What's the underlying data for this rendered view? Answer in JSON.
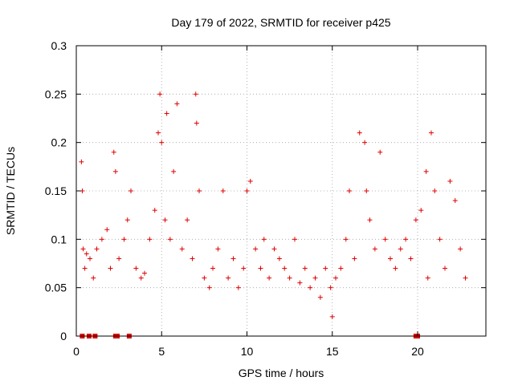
{
  "chart_data": {
    "type": "scatter",
    "title": "Day 179 of 2022, SRMTID for receiver p425",
    "xlabel": "GPS time / hours",
    "ylabel": "SRMTID / TECUs",
    "xlim": [
      0,
      24
    ],
    "ylim": [
      0,
      0.3
    ],
    "xticks": [
      0,
      5,
      10,
      15,
      20
    ],
    "xtick_labels": [
      "0",
      "5",
      "10",
      "15",
      "20"
    ],
    "yticks": [
      0,
      0.05,
      0.1,
      0.15,
      0.2,
      0.25,
      0.3
    ],
    "ytick_labels": [
      "0",
      "0.05",
      "0.1",
      "0.15",
      "0.2",
      "0.25",
      "0.3"
    ],
    "grid": true,
    "marker": "plus",
    "color": "#e00000",
    "series": [
      {
        "name": "SRMTID",
        "x": [
          0.3,
          0.35,
          0.4,
          0.5,
          0.6,
          0.8,
          1.0,
          1.2,
          1.5,
          1.8,
          2.0,
          2.2,
          2.3,
          2.5,
          2.8,
          3.0,
          3.2,
          3.5,
          3.8,
          4.0,
          4.3,
          4.6,
          4.8,
          4.9,
          5.0,
          5.2,
          5.3,
          5.5,
          5.7,
          5.9,
          6.2,
          6.5,
          6.8,
          7.0,
          7.05,
          7.2,
          7.5,
          7.8,
          8.0,
          8.3,
          8.6,
          8.9,
          9.2,
          9.5,
          9.8,
          10.0,
          10.2,
          10.5,
          10.8,
          11.0,
          11.3,
          11.6,
          11.9,
          12.2,
          12.5,
          12.8,
          13.1,
          13.4,
          13.7,
          14.0,
          14.3,
          14.6,
          14.9,
          15.0,
          15.2,
          15.5,
          15.8,
          16.0,
          16.3,
          16.6,
          16.9,
          17.0,
          17.2,
          17.5,
          17.8,
          18.1,
          18.4,
          18.7,
          19.0,
          19.3,
          19.6,
          19.9,
          20.2,
          20.5,
          20.6,
          20.8,
          21.0,
          21.3,
          21.6,
          21.9,
          22.2,
          22.5,
          22.8
        ],
        "y": [
          0.18,
          0.15,
          0.09,
          0.07,
          0.085,
          0.08,
          0.06,
          0.09,
          0.1,
          0.11,
          0.07,
          0.19,
          0.17,
          0.08,
          0.1,
          0.12,
          0.15,
          0.07,
          0.06,
          0.065,
          0.1,
          0.13,
          0.21,
          0.25,
          0.2,
          0.12,
          0.23,
          0.1,
          0.17,
          0.24,
          0.09,
          0.12,
          0.08,
          0.25,
          0.22,
          0.15,
          0.06,
          0.05,
          0.07,
          0.09,
          0.15,
          0.06,
          0.08,
          0.05,
          0.07,
          0.15,
          0.16,
          0.09,
          0.07,
          0.1,
          0.06,
          0.09,
          0.08,
          0.07,
          0.06,
          0.1,
          0.055,
          0.07,
          0.05,
          0.06,
          0.04,
          0.07,
          0.05,
          0.02,
          0.06,
          0.07,
          0.1,
          0.15,
          0.08,
          0.21,
          0.2,
          0.15,
          0.12,
          0.09,
          0.19,
          0.1,
          0.08,
          0.07,
          0.09,
          0.1,
          0.08,
          0.12,
          0.13,
          0.17,
          0.06,
          0.21,
          0.15,
          0.1,
          0.07,
          0.16,
          0.14,
          0.09,
          0.06
        ]
      }
    ],
    "zero_markers_x": [
      0.35,
      0.75,
      1.1,
      2.3,
      2.4,
      3.1,
      19.9,
      20.0
    ]
  }
}
